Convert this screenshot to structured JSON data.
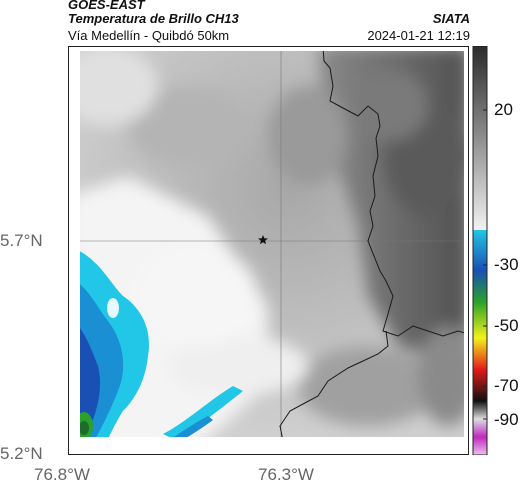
{
  "header": {
    "satellite": "GOES-EAST",
    "product": "Temperatura de Brillo CH13",
    "organization": "SIATA",
    "route": "Vía Medellín - Quibdó 50km",
    "timestamp": "2024-01-21 12:19"
  },
  "map": {
    "lat_labels": [
      "5.7°N",
      "5.2°N"
    ],
    "lon_labels": [
      "76.8°W",
      "76.3°W"
    ],
    "gridlines": true,
    "marker": "star-icon"
  },
  "colorbar": {
    "tick_labels": [
      "20",
      "-30",
      "-50",
      "-70",
      "-90"
    ],
    "colors": {
      "warm_dark": "#2a2a2a",
      "warm_light": "#f2f2f2",
      "cyan": "#22c6e6",
      "blue": "#1a4fb4",
      "green": "#2aa12a",
      "yellow": "#f2f21a",
      "red": "#e21a1a",
      "black": "#101010",
      "magenta": "#c02ac0"
    }
  }
}
